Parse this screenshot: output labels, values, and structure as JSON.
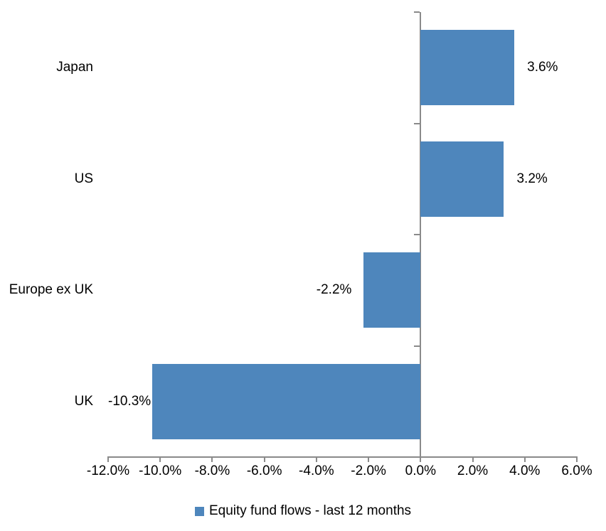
{
  "chart_data": {
    "type": "bar",
    "orientation": "horizontal",
    "title": "",
    "categories": [
      "Japan",
      "US",
      "Europe ex UK",
      "UK"
    ],
    "series": [
      {
        "name": "Equity fund flows - last 12 months",
        "values": [
          3.6,
          3.2,
          -2.2,
          -10.3
        ],
        "data_labels": [
          "3.6%",
          "3.2%",
          "-2.2%",
          "-10.3%"
        ]
      }
    ],
    "xlim": [
      -12,
      6
    ],
    "x_tick_step": 2,
    "x_tick_labels": [
      "-12.0%",
      "-10.0%",
      "-8.0%",
      "-6.0%",
      "-4.0%",
      "-2.0%",
      "0.0%",
      "2.0%",
      "4.0%",
      "6.0%"
    ],
    "grid": "off",
    "legend_position": "bottom",
    "colors": {
      "bar_fill": "#4E86BC",
      "axis_line": "#8A8A8A",
      "text": "#000000",
      "background": "#FFFFFF"
    },
    "legend": {
      "label": "Equity fund flows - last 12 months",
      "swatch_color": "#4E86BC"
    }
  }
}
